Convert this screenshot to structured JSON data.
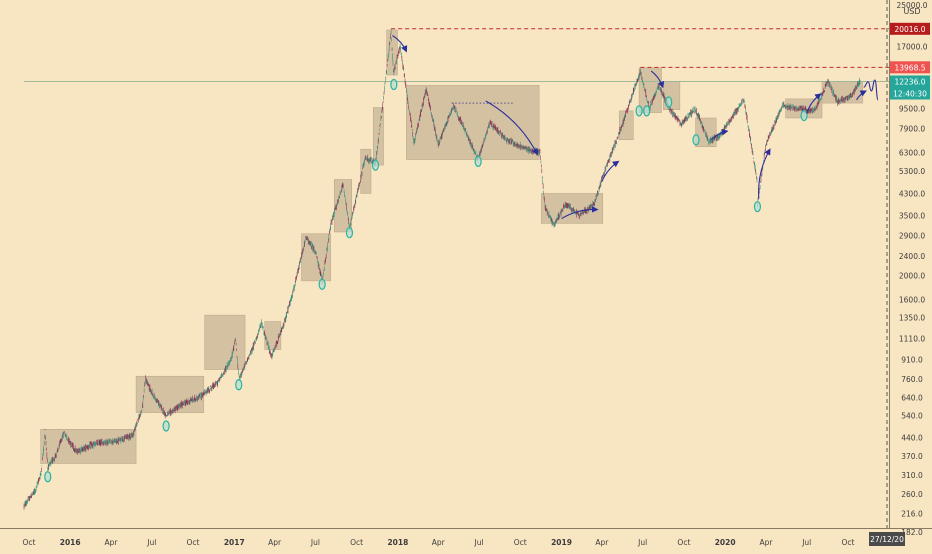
{
  "chart_data": {
    "type": "candlestick",
    "title": "",
    "y_unit_label": "USD",
    "y_scale": "log",
    "ylim": [
      182,
      25000
    ],
    "x_range": [
      "2015-09-20",
      "2020-12-27"
    ],
    "grid": false,
    "y_ticks": [
      25000,
      17000,
      12000,
      9500,
      7900,
      6300,
      5300,
      4300,
      3500,
      2900,
      2400,
      2000,
      1600,
      1350,
      1110,
      910,
      760,
      640,
      540,
      440,
      370,
      310,
      260,
      216,
      182
    ],
    "y_tick_labels": [
      "25000.0",
      "17000.0",
      "12000.0",
      "9500.0",
      "7900.0",
      "6300.0",
      "5300.0",
      "4300.0",
      "3500.0",
      "2900.0",
      "2400.0",
      "2000.0",
      "1600.0",
      "1350.0",
      "1110.0",
      "910.0",
      "760.0",
      "640.0",
      "540.0",
      "440.0",
      "370.0",
      "310.0",
      "260.0",
      "216.0",
      "182.0"
    ],
    "x_ticks": [
      {
        "date": "2015-10-01",
        "label": "Oct",
        "bold": false
      },
      {
        "date": "2016-01-01",
        "label": "2016",
        "bold": true
      },
      {
        "date": "2016-04-01",
        "label": "Apr",
        "bold": false
      },
      {
        "date": "2016-07-01",
        "label": "Jul",
        "bold": false
      },
      {
        "date": "2016-10-01",
        "label": "Oct",
        "bold": false
      },
      {
        "date": "2017-01-01",
        "label": "2017",
        "bold": true
      },
      {
        "date": "2017-04-01",
        "label": "Apr",
        "bold": false
      },
      {
        "date": "2017-07-01",
        "label": "Jul",
        "bold": false
      },
      {
        "date": "2017-10-01",
        "label": "Oct",
        "bold": false
      },
      {
        "date": "2018-01-01",
        "label": "2018",
        "bold": true
      },
      {
        "date": "2018-04-01",
        "label": "Apr",
        "bold": false
      },
      {
        "date": "2018-07-01",
        "label": "Jul",
        "bold": false
      },
      {
        "date": "2018-10-01",
        "label": "Oct",
        "bold": false
      },
      {
        "date": "2019-01-01",
        "label": "2019",
        "bold": true
      },
      {
        "date": "2019-04-01",
        "label": "Apr",
        "bold": false
      },
      {
        "date": "2019-07-01",
        "label": "Jul",
        "bold": false
      },
      {
        "date": "2019-10-01",
        "label": "Oct",
        "bold": false
      },
      {
        "date": "2020-01-01",
        "label": "2020",
        "bold": true
      },
      {
        "date": "2020-04-01",
        "label": "Apr",
        "bold": false
      },
      {
        "date": "2020-07-01",
        "label": "Jul",
        "bold": false
      },
      {
        "date": "2020-10-01",
        "label": "Oct",
        "bold": false
      }
    ],
    "price_labels": [
      {
        "value": 20016.0,
        "text": "20016.0",
        "color": "#b71c1c"
      },
      {
        "value": 13968.5,
        "text": "13968.5",
        "color": "#ef5350"
      },
      {
        "value": 12236.0,
        "text": "12236.0",
        "color": "#26a69a"
      }
    ],
    "countdown_label": "12:40:30",
    "date_label": "27/12/20",
    "horizontal_lines": [
      {
        "value": 20016.0,
        "from": "2017-12-17",
        "color": "#c62828",
        "style": "dashed"
      },
      {
        "value": 13968.5,
        "from": "2019-06-26",
        "color": "#c62828",
        "style": "dashed"
      },
      {
        "value": 12236.0,
        "from": "2015-09-20",
        "color": "#9fb89a",
        "style": "solid"
      },
      {
        "value": 10000.0,
        "from": "2018-05-01",
        "to": "2018-09-15",
        "color": "#5c4b8a",
        "style": "dotted"
      }
    ],
    "vertical_line": {
      "date": "2020-12-27",
      "color": "#555555",
      "style": "dashed"
    },
    "range_boxes": [
      {
        "start": "2015-10-27",
        "end": "2016-05-27",
        "low": 345,
        "high": 475
      },
      {
        "start": "2016-05-27",
        "end": "2016-10-25",
        "low": 555,
        "high": 780
      },
      {
        "start": "2016-10-27",
        "end": "2017-01-25",
        "low": 830,
        "high": 1380
      },
      {
        "start": "2017-03-10",
        "end": "2017-04-15",
        "low": 1000,
        "high": 1300
      },
      {
        "start": "2017-05-31",
        "end": "2017-08-04",
        "low": 1900,
        "high": 2950
      },
      {
        "start": "2017-08-12",
        "end": "2017-09-20",
        "low": 3000,
        "high": 4900
      },
      {
        "start": "2017-10-10",
        "end": "2017-11-02",
        "low": 4300,
        "high": 6500
      },
      {
        "start": "2017-11-07",
        "end": "2017-11-30",
        "low": 5600,
        "high": 9600
      },
      {
        "start": "2017-12-07",
        "end": "2017-12-31",
        "low": 13000,
        "high": 19800
      },
      {
        "start": "2018-01-20",
        "end": "2018-11-12",
        "low": 5900,
        "high": 11800
      },
      {
        "start": "2018-11-17",
        "end": "2019-04-03",
        "low": 3250,
        "high": 4300
      },
      {
        "start": "2019-05-10",
        "end": "2019-06-10",
        "low": 7100,
        "high": 9300
      },
      {
        "start": "2019-06-23",
        "end": "2019-08-12",
        "low": 9150,
        "high": 13900
      },
      {
        "start": "2019-08-16",
        "end": "2019-09-22",
        "low": 9400,
        "high": 12200
      },
      {
        "start": "2019-10-27",
        "end": "2019-12-12",
        "low": 6650,
        "high": 8700
      },
      {
        "start": "2020-05-15",
        "end": "2020-08-04",
        "low": 8700,
        "high": 10400
      },
      {
        "start": "2020-08-04",
        "end": "2020-11-03",
        "low": 10000,
        "high": 12250
      }
    ],
    "highlight_points": [
      {
        "date": "2015-11-12",
        "value": 305
      },
      {
        "date": "2016-08-02",
        "value": 490
      },
      {
        "date": "2017-01-11",
        "value": 720
      },
      {
        "date": "2017-07-16",
        "value": 1840
      },
      {
        "date": "2017-09-15",
        "value": 2980
      },
      {
        "date": "2017-11-12",
        "value": 5600
      },
      {
        "date": "2017-12-23",
        "value": 11900
      },
      {
        "date": "2018-06-29",
        "value": 5800
      },
      {
        "date": "2019-06-23",
        "value": 9300
      },
      {
        "date": "2019-07-10",
        "value": 9300
      },
      {
        "date": "2019-08-28",
        "value": 10100
      },
      {
        "date": "2019-10-28",
        "value": 7100
      },
      {
        "date": "2020-03-13",
        "value": 3800
      },
      {
        "date": "2020-06-25",
        "value": 8900
      }
    ],
    "trend_arrows": [
      {
        "start": "2017-12-20",
        "start_value": 18800,
        "end": "2018-01-20",
        "end_value": 16200
      },
      {
        "start": "2018-07-16",
        "start_value": 10200,
        "end": "2018-11-08",
        "end_value": 6200
      },
      {
        "start": "2019-01-01",
        "start_value": 3400,
        "end": "2019-03-22",
        "end_value": 3700
      },
      {
        "start": "2019-04-01",
        "start_value": 4800,
        "end": "2019-05-08",
        "end_value": 5800
      },
      {
        "start": "2019-07-20",
        "start_value": 13500,
        "end": "2019-08-15",
        "end_value": 11600
      },
      {
        "start": "2019-12-01",
        "start_value": 7100,
        "end": "2020-01-06",
        "end_value": 7700
      },
      {
        "start": "2020-03-16",
        "start_value": 4100,
        "end": "2020-04-10",
        "end_value": 6500
      },
      {
        "start": "2020-07-01",
        "start_value": 9100,
        "end": "2020-08-01",
        "end_value": 10900
      },
      {
        "start": "2020-10-20",
        "start_value": 10300,
        "end": "2020-11-10",
        "end_value": 11200
      }
    ],
    "projection_path": [
      {
        "date": "2020-11-05",
        "value": 11600
      },
      {
        "date": "2020-11-15",
        "value": 12200
      },
      {
        "date": "2020-11-22",
        "value": 11200
      },
      {
        "date": "2020-11-30",
        "value": 12400
      },
      {
        "date": "2020-12-07",
        "value": 10300
      }
    ],
    "price_path": [
      {
        "date": "2015-09-20",
        "value": 232
      },
      {
        "date": "2015-10-15",
        "value": 268
      },
      {
        "date": "2015-10-28",
        "value": 315
      },
      {
        "date": "2015-11-04",
        "value": 420
      },
      {
        "date": "2015-11-06",
        "value": 470
      },
      {
        "date": "2015-11-12",
        "value": 332
      },
      {
        "date": "2015-12-01",
        "value": 375
      },
      {
        "date": "2015-12-18",
        "value": 460
      },
      {
        "date": "2016-01-15",
        "value": 385
      },
      {
        "date": "2016-02-15",
        "value": 408
      },
      {
        "date": "2016-03-10",
        "value": 420
      },
      {
        "date": "2016-04-15",
        "value": 425
      },
      {
        "date": "2016-05-20",
        "value": 452
      },
      {
        "date": "2016-06-10",
        "value": 580
      },
      {
        "date": "2016-06-17",
        "value": 760
      },
      {
        "date": "2016-07-01",
        "value": 670
      },
      {
        "date": "2016-08-02",
        "value": 540
      },
      {
        "date": "2016-09-10",
        "value": 605
      },
      {
        "date": "2016-10-15",
        "value": 640
      },
      {
        "date": "2016-11-25",
        "value": 735
      },
      {
        "date": "2016-12-25",
        "value": 910
      },
      {
        "date": "2017-01-04",
        "value": 1110
      },
      {
        "date": "2017-01-11",
        "value": 760
      },
      {
        "date": "2017-02-10",
        "value": 1000
      },
      {
        "date": "2017-03-03",
        "value": 1280
      },
      {
        "date": "2017-03-25",
        "value": 935
      },
      {
        "date": "2017-04-20",
        "value": 1240
      },
      {
        "date": "2017-05-15",
        "value": 1790
      },
      {
        "date": "2017-06-10",
        "value": 2850
      },
      {
        "date": "2017-07-01",
        "value": 2500
      },
      {
        "date": "2017-07-16",
        "value": 1900
      },
      {
        "date": "2017-08-05",
        "value": 3250
      },
      {
        "date": "2017-09-01",
        "value": 4700
      },
      {
        "date": "2017-09-15",
        "value": 3100
      },
      {
        "date": "2017-10-20",
        "value": 6000
      },
      {
        "date": "2017-11-12",
        "value": 5700
      },
      {
        "date": "2017-11-29",
        "value": 10200
      },
      {
        "date": "2017-12-17",
        "value": 19500
      },
      {
        "date": "2017-12-22",
        "value": 13300
      },
      {
        "date": "2018-01-06",
        "value": 17000
      },
      {
        "date": "2018-02-06",
        "value": 6900
      },
      {
        "date": "2018-03-05",
        "value": 11400
      },
      {
        "date": "2018-04-01",
        "value": 6800
      },
      {
        "date": "2018-05-05",
        "value": 9800
      },
      {
        "date": "2018-06-29",
        "value": 5900
      },
      {
        "date": "2018-07-25",
        "value": 8300
      },
      {
        "date": "2018-09-01",
        "value": 7100
      },
      {
        "date": "2018-10-15",
        "value": 6500
      },
      {
        "date": "2018-11-14",
        "value": 6300
      },
      {
        "date": "2018-11-25",
        "value": 3800
      },
      {
        "date": "2018-12-15",
        "value": 3200
      },
      {
        "date": "2019-01-10",
        "value": 3900
      },
      {
        "date": "2019-02-10",
        "value": 3500
      },
      {
        "date": "2019-03-15",
        "value": 3900
      },
      {
        "date": "2019-04-02",
        "value": 5000
      },
      {
        "date": "2019-05-15",
        "value": 8000
      },
      {
        "date": "2019-06-26",
        "value": 13500
      },
      {
        "date": "2019-07-16",
        "value": 9500
      },
      {
        "date": "2019-08-06",
        "value": 11800
      },
      {
        "date": "2019-08-28",
        "value": 9600
      },
      {
        "date": "2019-09-25",
        "value": 8200
      },
      {
        "date": "2019-10-26",
        "value": 9500
      },
      {
        "date": "2019-11-25",
        "value": 7000
      },
      {
        "date": "2019-12-18",
        "value": 7300
      },
      {
        "date": "2020-02-12",
        "value": 10300
      },
      {
        "date": "2020-03-12",
        "value": 4900
      },
      {
        "date": "2020-03-13",
        "value": 3900
      },
      {
        "date": "2020-04-01",
        "value": 6800
      },
      {
        "date": "2020-05-08",
        "value": 9800
      },
      {
        "date": "2020-06-10",
        "value": 9500
      },
      {
        "date": "2020-07-20",
        "value": 9300
      },
      {
        "date": "2020-08-17",
        "value": 12300
      },
      {
        "date": "2020-09-08",
        "value": 10100
      },
      {
        "date": "2020-10-08",
        "value": 10700
      },
      {
        "date": "2020-10-28",
        "value": 12236
      }
    ]
  }
}
